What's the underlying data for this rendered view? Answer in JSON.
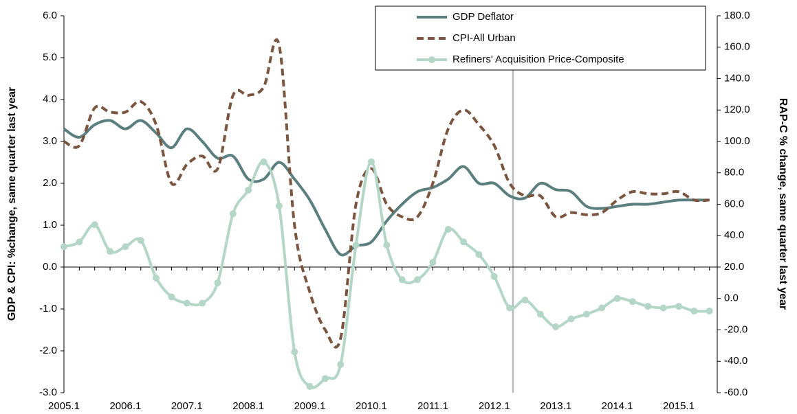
{
  "chart_data": {
    "type": "line",
    "y_label": "GDP & CPI:  %change, same quarter last year",
    "y2_label": "RAP-C % change, same quarter last year",
    "categories": [
      "2005.1",
      null,
      null,
      null,
      "2006.1",
      null,
      null,
      null,
      "2007.1",
      null,
      null,
      null,
      "2008.1",
      null,
      null,
      null,
      "2009.1",
      null,
      null,
      null,
      "2010.1",
      null,
      null,
      null,
      "2011.1",
      null,
      null,
      null,
      "2012.1",
      null,
      null,
      null,
      "2013.1",
      null,
      null,
      null,
      "2014.1",
      null,
      null,
      null,
      "2015.1",
      null,
      null
    ],
    "ylim": [
      -3,
      6
    ],
    "yticks": [
      {
        "value": -3,
        "label": "-3.0"
      },
      {
        "value": -2,
        "label": "-2.0"
      },
      {
        "value": -1,
        "label": "-1.0"
      },
      {
        "value": 0,
        "label": "0.0"
      },
      {
        "value": 1,
        "label": "1.0"
      },
      {
        "value": 2,
        "label": "2.0"
      },
      {
        "value": 3,
        "label": "3.0"
      },
      {
        "value": 4,
        "label": "4.0"
      },
      {
        "value": 5,
        "label": "5.0"
      },
      {
        "value": 6,
        "label": "6.0"
      }
    ],
    "y2lim": [
      -60,
      180
    ],
    "y2ticks": [
      {
        "value": -60,
        "label": "-60.0"
      },
      {
        "value": -40,
        "label": "-40.0"
      },
      {
        "value": -20,
        "label": "-20.0"
      },
      {
        "value": 0,
        "label": "0.0"
      },
      {
        "value": 20,
        "label": "20.0"
      },
      {
        "value": 40,
        "label": "40.0"
      },
      {
        "value": 60,
        "label": "60.0"
      },
      {
        "value": 80,
        "label": "80.0"
      },
      {
        "value": 100,
        "label": "100.0"
      },
      {
        "value": 120,
        "label": "120.0"
      },
      {
        "value": 140,
        "label": "140.0"
      },
      {
        "value": 160,
        "label": "160.0"
      },
      {
        "value": 180,
        "label": "180.0"
      }
    ],
    "grid": false,
    "legend": "top-right",
    "series": [
      {
        "name": "GDP Deflator",
        "color": "#5b7f7f",
        "dash": false,
        "markers": false,
        "values": [
          3.3,
          3.1,
          3.4,
          3.5,
          3.3,
          3.5,
          3.2,
          2.85,
          3.3,
          3.0,
          2.6,
          2.65,
          2.1,
          2.1,
          2.5,
          2.1,
          1.6,
          0.9,
          0.3,
          0.5,
          0.6,
          1.1,
          1.5,
          1.8,
          1.9,
          2.1,
          2.4,
          2.0,
          2.0,
          1.7,
          1.65,
          2.0,
          1.85,
          1.8,
          1.45,
          1.4,
          1.45,
          1.5,
          1.5,
          1.55,
          1.6,
          1.6,
          1.6
        ]
      },
      {
        "name": "CPI-All Urban",
        "color": "#7a5640",
        "dash": true,
        "markers": false,
        "values": [
          3.0,
          2.9,
          3.8,
          3.7,
          3.7,
          3.95,
          3.4,
          2.0,
          2.45,
          2.65,
          2.35,
          4.1,
          4.1,
          4.3,
          5.3,
          1.0,
          -0.6,
          -1.5,
          -1.7,
          1.5,
          2.35,
          1.5,
          1.2,
          1.2,
          2.0,
          3.3,
          3.75,
          3.4,
          2.9,
          2.0,
          1.7,
          1.7,
          1.2,
          1.3,
          1.25,
          1.3,
          1.6,
          1.8,
          1.75,
          1.75,
          1.8,
          1.6,
          1.6
        ]
      },
      {
        "name": "Refiners' Acquisition Price-Composite",
        "color": "#b4d6c6",
        "dash": false,
        "markers": true,
        "axis": "y2",
        "values": [
          33,
          36,
          47,
          30,
          33,
          37,
          13,
          1,
          -3,
          -3,
          10,
          54,
          69,
          87,
          59,
          -34,
          -56,
          -51,
          -42,
          34,
          87,
          34,
          12,
          12,
          23,
          44,
          36,
          28,
          14,
          -6,
          -1,
          -10,
          -18,
          -13,
          -10,
          -6,
          0,
          -2,
          -5,
          -6,
          -5,
          -8,
          -8
        ]
      }
    ]
  }
}
